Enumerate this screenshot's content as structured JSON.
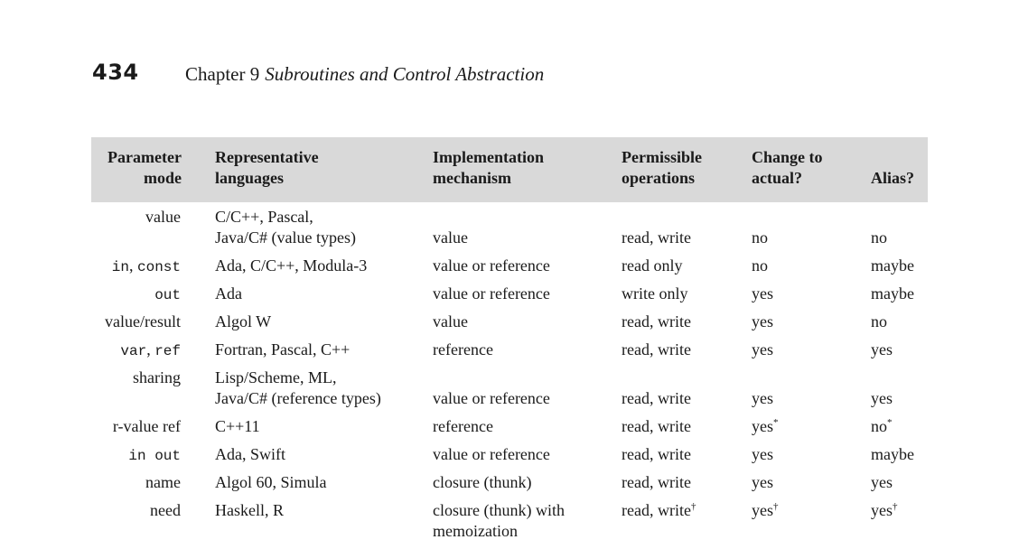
{
  "page": {
    "number": "434",
    "chapter_label": "Chapter 9",
    "chapter_title": "Subroutines and Control Abstraction"
  },
  "table": {
    "headers": {
      "mode": [
        "Parameter",
        "mode"
      ],
      "languages": [
        "Representative",
        "languages"
      ],
      "mechanism": [
        "Implementation",
        "mechanism"
      ],
      "operations": [
        "Permissible",
        "operations"
      ],
      "change": [
        "Change to",
        "actual?"
      ],
      "alias": [
        "Alias?"
      ]
    },
    "rows": [
      {
        "mode": [
          {
            "text": "value",
            "mono": false
          }
        ],
        "languages": [
          "C/C++, Pascal,",
          "Java/C# (value types)"
        ],
        "mechanism": [
          "value"
        ],
        "operations": "read, write",
        "operations_mark": "",
        "change": "no",
        "change_mark": "",
        "alias": "no",
        "alias_mark": ""
      },
      {
        "mode": [
          {
            "text": "in",
            "mono": true
          },
          {
            "text": ", ",
            "mono": false
          },
          {
            "text": "const",
            "mono": true
          }
        ],
        "languages": [
          "Ada, C/C++, Modula-3"
        ],
        "mechanism": [
          "value or reference"
        ],
        "operations": "read only",
        "operations_mark": "",
        "change": "no",
        "change_mark": "",
        "alias": "maybe",
        "alias_mark": ""
      },
      {
        "mode": [
          {
            "text": "out",
            "mono": true
          }
        ],
        "languages": [
          "Ada"
        ],
        "mechanism": [
          "value or reference"
        ],
        "operations": "write only",
        "operations_mark": "",
        "change": "yes",
        "change_mark": "",
        "alias": "maybe",
        "alias_mark": ""
      },
      {
        "mode": [
          {
            "text": "value/result",
            "mono": false
          }
        ],
        "languages": [
          "Algol W"
        ],
        "mechanism": [
          "value"
        ],
        "operations": "read, write",
        "operations_mark": "",
        "change": "yes",
        "change_mark": "",
        "alias": "no",
        "alias_mark": ""
      },
      {
        "mode": [
          {
            "text": "var",
            "mono": true
          },
          {
            "text": ", ",
            "mono": false
          },
          {
            "text": "ref",
            "mono": true
          }
        ],
        "languages": [
          "Fortran, Pascal, C++"
        ],
        "mechanism": [
          "reference"
        ],
        "operations": "read, write",
        "operations_mark": "",
        "change": "yes",
        "change_mark": "",
        "alias": "yes",
        "alias_mark": ""
      },
      {
        "mode": [
          {
            "text": "sharing",
            "mono": false
          }
        ],
        "languages": [
          "Lisp/Scheme, ML,",
          "Java/C# (reference types)"
        ],
        "mechanism": [
          "value or reference"
        ],
        "operations": "read, write",
        "operations_mark": "",
        "change": "yes",
        "change_mark": "",
        "alias": "yes",
        "alias_mark": ""
      },
      {
        "mode": [
          {
            "text": "r-value ref",
            "mono": false
          }
        ],
        "languages": [
          "C++11"
        ],
        "mechanism": [
          "reference"
        ],
        "operations": "read, write",
        "operations_mark": "",
        "change": "yes",
        "change_mark": "*",
        "alias": "no",
        "alias_mark": "*"
      },
      {
        "mode": [
          {
            "text": "in out",
            "mono": true
          }
        ],
        "languages": [
          "Ada, Swift"
        ],
        "mechanism": [
          "value or reference"
        ],
        "operations": "read, write",
        "operations_mark": "",
        "change": "yes",
        "change_mark": "",
        "alias": "maybe",
        "alias_mark": ""
      },
      {
        "mode": [
          {
            "text": "name",
            "mono": false
          }
        ],
        "languages": [
          "Algol 60, Simula"
        ],
        "mechanism": [
          "closure (thunk)"
        ],
        "operations": "read, write",
        "operations_mark": "",
        "change": "yes",
        "change_mark": "",
        "alias": "yes",
        "alias_mark": ""
      },
      {
        "mode": [
          {
            "text": "need",
            "mono": false
          }
        ],
        "languages": [
          "Haskell, R"
        ],
        "mechanism": [
          "closure (thunk) with",
          "memoization"
        ],
        "operations": "read, write",
        "operations_mark": "†",
        "change": "yes",
        "change_mark": "†",
        "alias": "yes",
        "alias_mark": "†"
      }
    ]
  }
}
